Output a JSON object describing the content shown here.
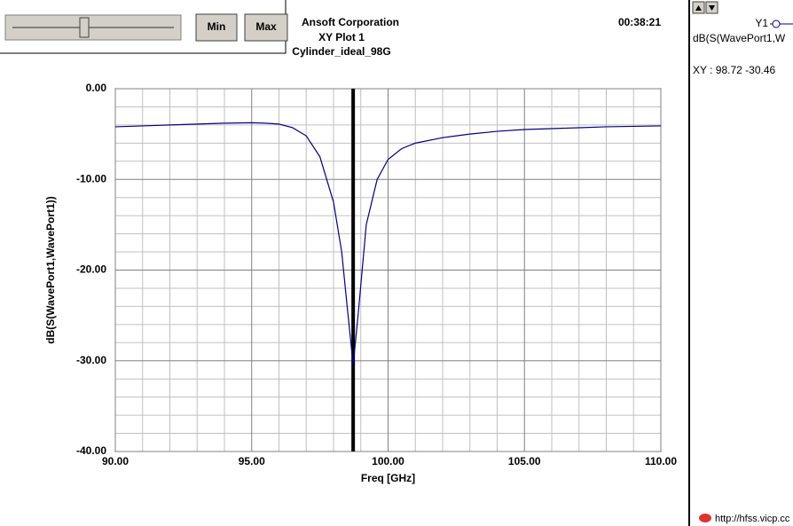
{
  "ui": {
    "min_button": "Min",
    "max_button": "Max",
    "time": "00:38:21",
    "legend_trace": "Y1",
    "legend_label": "dB(S(WavePort1,W",
    "marker_readout": "XY : 98.72 -30.46",
    "watermark": "http://hfss.vicp.cc"
  },
  "chart_data": {
    "type": "line",
    "company": "Ansoft Corporation",
    "title": "XY Plot 1",
    "subtitle": "Cylinder_ideal_98G",
    "x_label": "Freq [GHz]",
    "y_label": "dB(S(WavePort1,WavePort1))",
    "xlim": [
      90,
      110
    ],
    "ylim": [
      -40,
      0
    ],
    "xticks": [
      {
        "value": 90,
        "label": "90.00"
      },
      {
        "value": 95,
        "label": "95.00"
      },
      {
        "value": 100,
        "label": "100.00"
      },
      {
        "value": 105,
        "label": "105.00"
      },
      {
        "value": 110,
        "label": "110.00"
      }
    ],
    "yticks": [
      {
        "value": 0,
        "label": "0.00"
      },
      {
        "value": -10,
        "label": "-10.00"
      },
      {
        "value": -20,
        "label": "-20.00"
      },
      {
        "value": -30,
        "label": "-30.00"
      },
      {
        "value": -40,
        "label": "-40.00"
      }
    ],
    "xgrid": [
      91,
      92,
      93,
      94,
      96,
      97,
      98,
      99,
      101,
      102,
      103,
      104,
      106,
      107,
      108,
      109
    ],
    "ygrid": [
      -2,
      -4,
      -6,
      -8,
      -12,
      -14,
      -16,
      -18,
      -22,
      -24,
      -26,
      -28,
      -32,
      -34,
      -36,
      -38
    ],
    "marker_x": 98.72,
    "series": [
      {
        "name": "Y1",
        "color": "#000080",
        "x": [
          90,
          91,
          92,
          93,
          94,
          95,
          95.5,
          96,
          96.5,
          97,
          97.5,
          98,
          98.3,
          98.5,
          98.72,
          98.9,
          99.2,
          99.6,
          100,
          100.5,
          101,
          102,
          103,
          104,
          105,
          106,
          107,
          108,
          109,
          110
        ],
        "values": [
          -4.2,
          -4.1,
          -4.0,
          -3.9,
          -3.8,
          -3.75,
          -3.8,
          -3.9,
          -4.3,
          -5.2,
          -7.5,
          -12.5,
          -18,
          -24,
          -30.46,
          -25,
          -15,
          -10,
          -7.8,
          -6.6,
          -6.0,
          -5.4,
          -5.0,
          -4.7,
          -4.5,
          -4.4,
          -4.3,
          -4.2,
          -4.15,
          -4.1
        ]
      }
    ]
  }
}
